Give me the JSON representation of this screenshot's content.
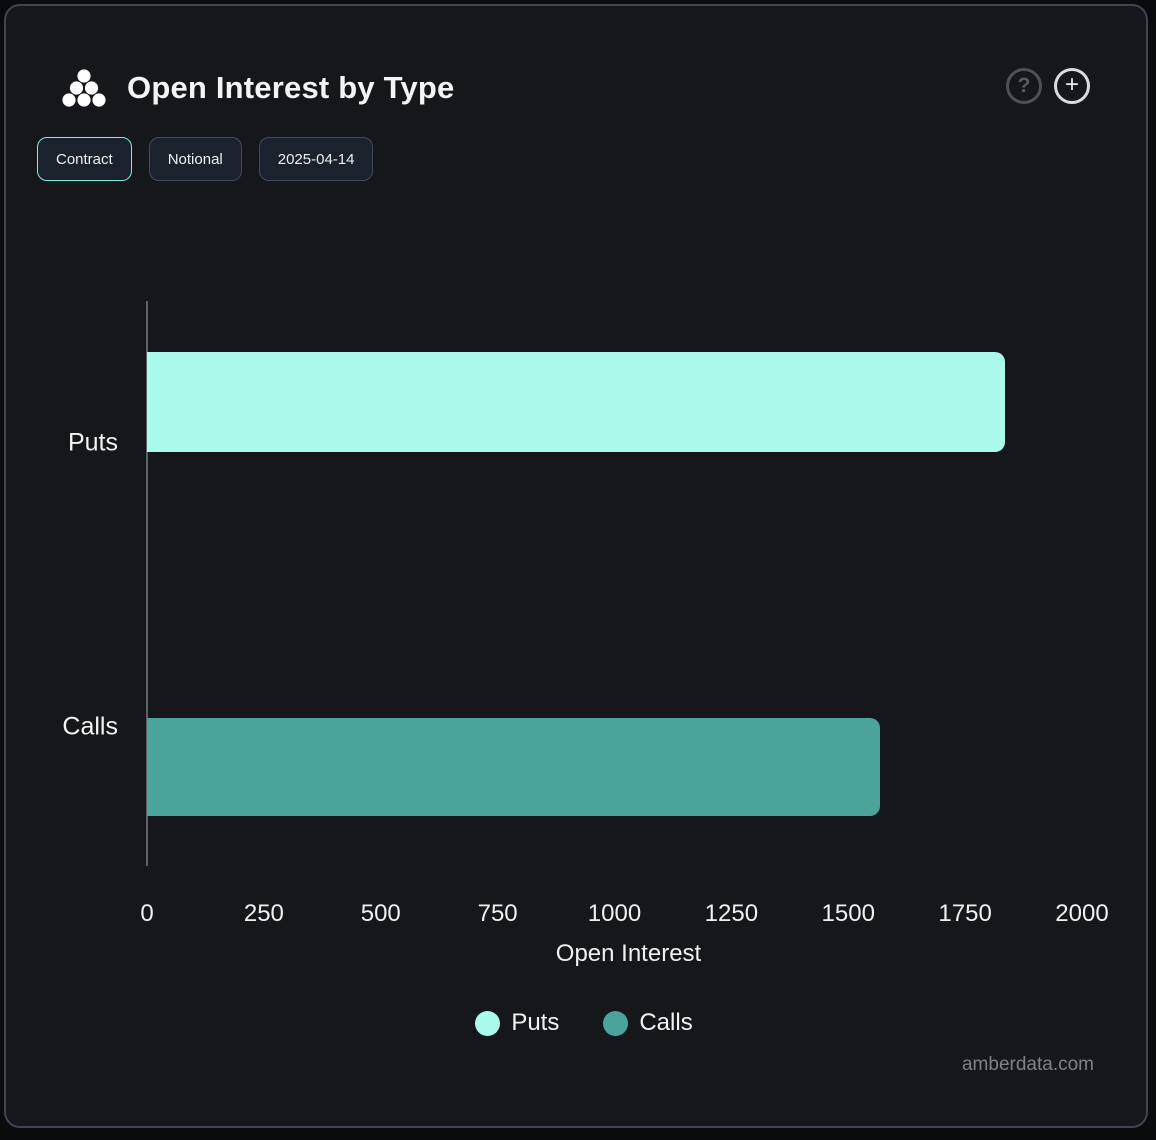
{
  "header": {
    "title": "Open Interest by Type",
    "help_glyph": "?",
    "add_glyph": "+"
  },
  "filters": {
    "contract_label": "Contract",
    "notional_label": "Notional",
    "date_label": "2025-04-14"
  },
  "chart_data": {
    "type": "bar",
    "orientation": "horizontal",
    "title": "Open Interest by Type",
    "xlabel": "Open Interest",
    "categories": [
      "Puts",
      "Calls"
    ],
    "series": [
      {
        "name": "Puts",
        "value": 1835,
        "color": "#aafbec"
      },
      {
        "name": "Calls",
        "value": 1568,
        "color": "#4ba49c"
      }
    ],
    "xlim": [
      0,
      2000
    ],
    "xticks": [
      0,
      250,
      500,
      750,
      1000,
      1250,
      1500,
      1750,
      2000
    ],
    "grid": false,
    "legend_position": "bottom",
    "legend": [
      {
        "label": "Puts",
        "color": "#aafbec"
      },
      {
        "label": "Calls",
        "color": "#4ba49c"
      }
    ]
  },
  "watermark": "amberdata.com",
  "colors": {
    "panel_bg": "#15171b",
    "panel_border": "#3e4654",
    "accent_mint": "#7df0dc",
    "bar_puts": "#aafbec",
    "bar_calls": "#4ba49c",
    "axis_line": "#5c6168"
  }
}
